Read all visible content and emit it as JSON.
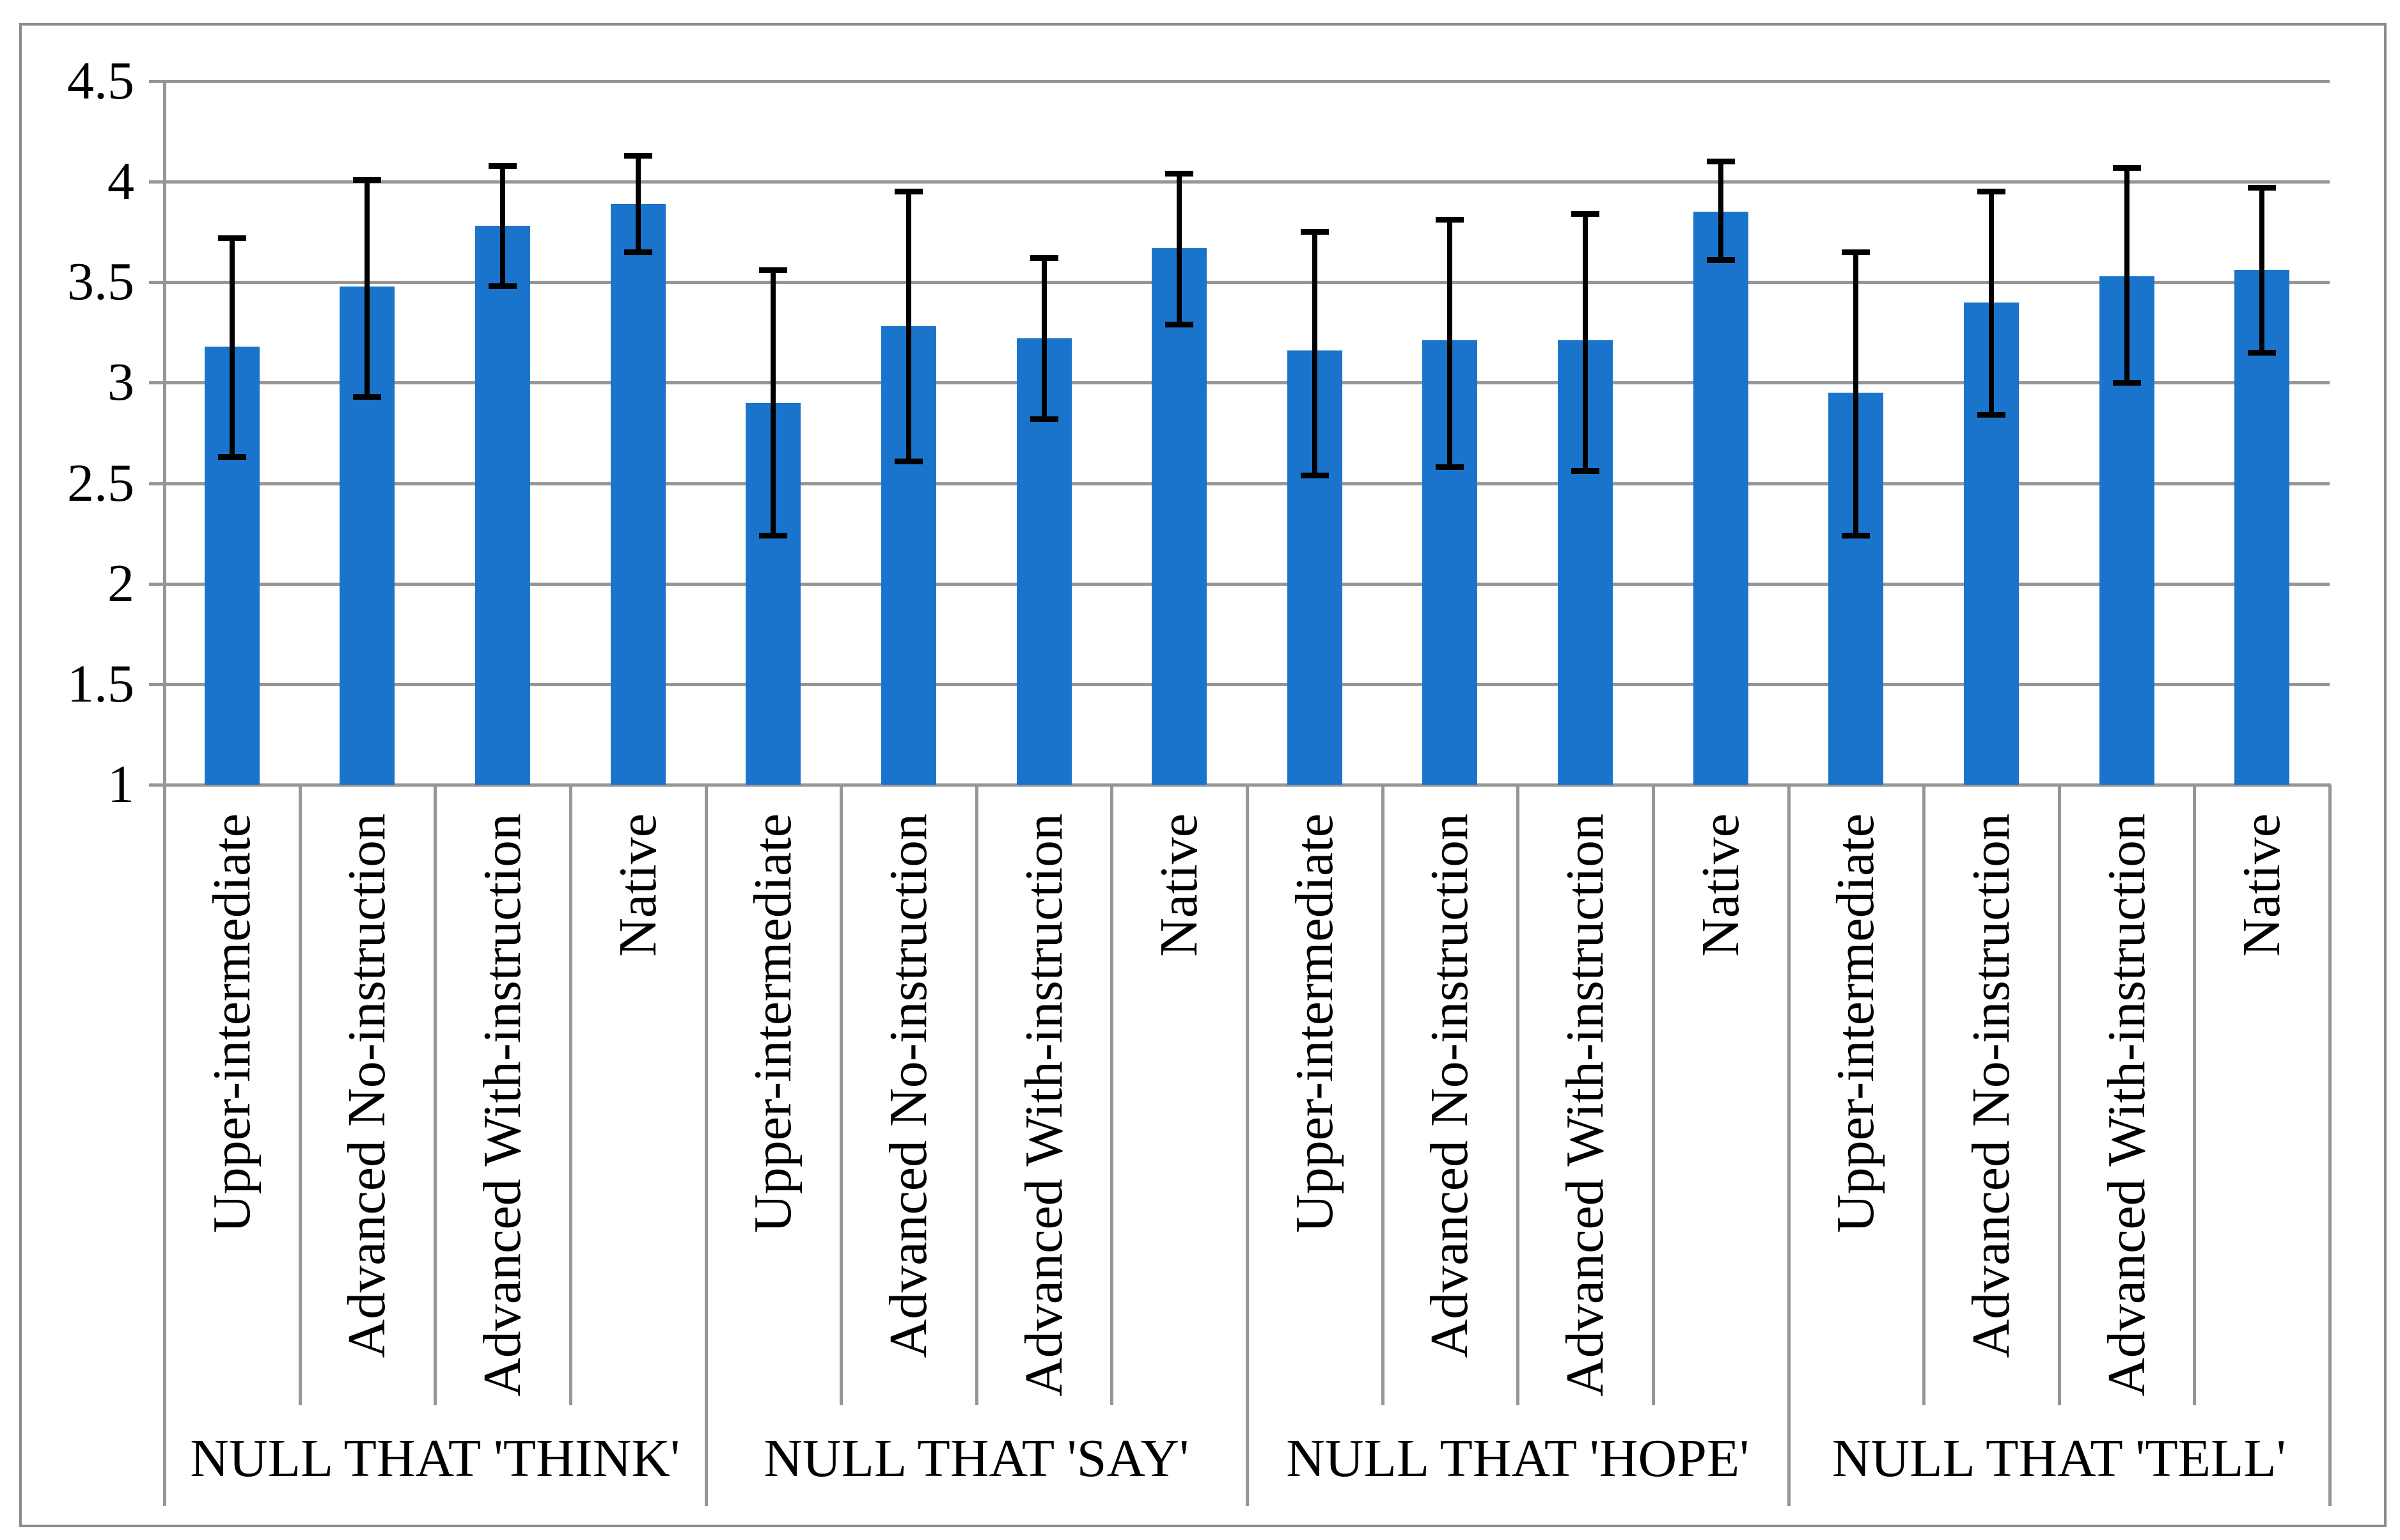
{
  "chart_data": {
    "type": "bar",
    "title": "",
    "xlabel": "",
    "ylabel": "",
    "ylim": [
      1,
      4.5
    ],
    "ytick_step": 0.5,
    "ytick_labels": [
      "4.5",
      "4",
      "3.5",
      "3",
      "2.5",
      "2",
      "1.5",
      "1"
    ],
    "ytick_values": [
      4.5,
      4,
      3.5,
      3,
      2.5,
      2,
      1.5,
      1
    ],
    "grid": true,
    "legend_position": "none",
    "bar_color": "#1B74CC",
    "error_bar_color": "#000000",
    "gridline_color": "#969696",
    "axis_color": "#969696",
    "frame_border_color": "#8C8C8C",
    "categories_per_group": [
      "Upper-intermediate",
      "Advanced No-instruction",
      "Advanced With-instruction",
      "Native"
    ],
    "groups": [
      {
        "label": "NULL THAT 'THINK'",
        "bars": [
          {
            "category": "Upper-intermediate",
            "value": 3.18,
            "err_low": 2.63,
            "err_high": 3.72
          },
          {
            "category": "Advanced No-instruction",
            "value": 3.48,
            "err_low": 2.93,
            "err_high": 4.01
          },
          {
            "category": "Advanced With-instruction",
            "value": 3.78,
            "err_low": 3.48,
            "err_high": 4.08
          },
          {
            "category": "Native",
            "value": 3.89,
            "err_low": 3.65,
            "err_high": 4.13
          }
        ]
      },
      {
        "label": "NULL THAT 'SAY'",
        "bars": [
          {
            "category": "Upper-intermediate",
            "value": 2.9,
            "err_low": 2.24,
            "err_high": 3.56
          },
          {
            "category": "Advanced No-instruction",
            "value": 3.28,
            "err_low": 2.61,
            "err_high": 3.95
          },
          {
            "category": "Advanced With-instruction",
            "value": 3.22,
            "err_low": 2.82,
            "err_high": 3.62
          },
          {
            "category": "Native",
            "value": 3.67,
            "err_low": 3.29,
            "err_high": 4.04
          }
        ]
      },
      {
        "label": "NULL THAT 'HOPE'",
        "bars": [
          {
            "category": "Upper-intermediate",
            "value": 3.16,
            "err_low": 2.54,
            "err_high": 3.75
          },
          {
            "category": "Advanced No-instruction",
            "value": 3.21,
            "err_low": 2.58,
            "err_high": 3.81
          },
          {
            "category": "Advanced With-instruction",
            "value": 3.21,
            "err_low": 2.56,
            "err_high": 3.84
          },
          {
            "category": "Native",
            "value": 3.85,
            "err_low": 3.61,
            "err_high": 4.1
          }
        ]
      },
      {
        "label": "NULL THAT 'TELL'",
        "bars": [
          {
            "category": "Upper-intermediate",
            "value": 2.95,
            "err_low": 2.24,
            "err_high": 3.65
          },
          {
            "category": "Advanced No-instruction",
            "value": 3.4,
            "err_low": 2.84,
            "err_high": 3.95
          },
          {
            "category": "Advanced With-instruction",
            "value": 3.53,
            "err_low": 3.0,
            "err_high": 4.07
          },
          {
            "category": "Native",
            "value": 3.56,
            "err_low": 3.15,
            "err_high": 3.97
          }
        ]
      }
    ]
  }
}
